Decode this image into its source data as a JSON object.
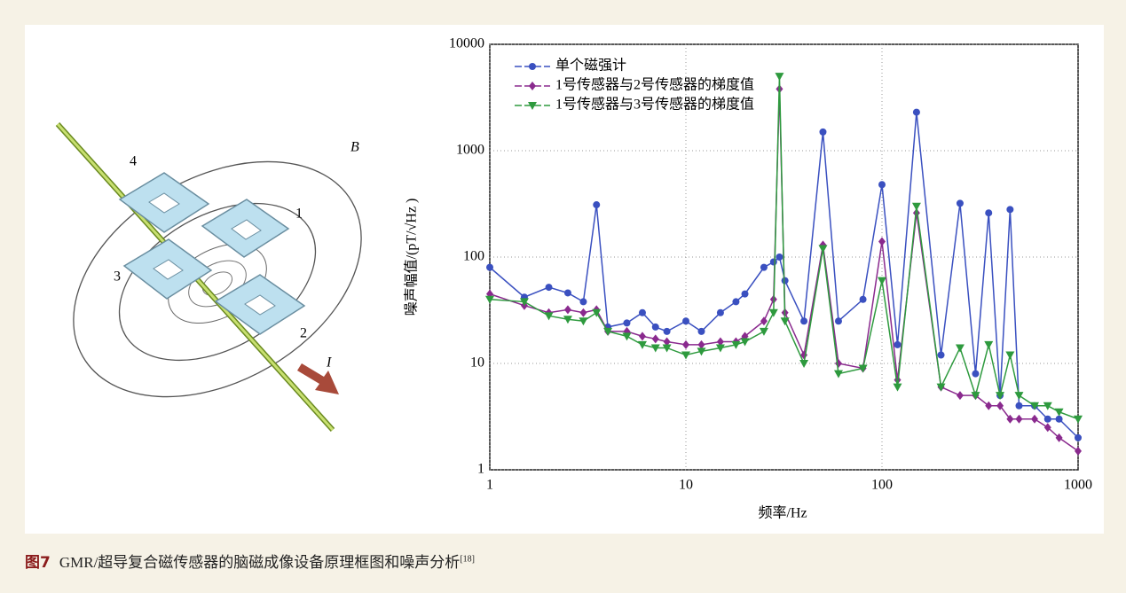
{
  "diagram": {
    "field_label": "B",
    "current_label": "I",
    "sensor_labels": [
      "1",
      "2",
      "3",
      "4"
    ]
  },
  "chart_data": {
    "type": "line",
    "xlabel": "频率/Hz",
    "ylabel": "噪声幅值/(pT/√Hz )",
    "x": [
      1,
      1.5,
      2,
      2.5,
      3,
      3.5,
      4,
      5,
      6,
      7,
      8,
      10,
      12,
      15,
      18,
      20,
      25,
      28,
      30,
      32,
      40,
      50,
      60,
      80,
      100,
      120,
      150,
      200,
      250,
      300,
      350,
      400,
      450,
      500,
      600,
      700,
      800,
      1000
    ],
    "series": [
      {
        "name": "单个磁强计",
        "color": "#3a50c0",
        "marker": "circle",
        "values": [
          80,
          42,
          52,
          46,
          38,
          310,
          22,
          24,
          30,
          22,
          20,
          25,
          20,
          30,
          38,
          45,
          80,
          90,
          100,
          60,
          25,
          1500,
          25,
          40,
          480,
          15,
          2300,
          12,
          320,
          8,
          260,
          5,
          280,
          4,
          4,
          3,
          3,
          2
        ]
      },
      {
        "name": "1号传感器与2号传感器的梯度值",
        "color": "#8a2a8e",
        "marker": "diamond",
        "values": [
          45,
          35,
          30,
          32,
          30,
          32,
          20,
          20,
          18,
          17,
          16,
          15,
          15,
          16,
          16,
          18,
          25,
          40,
          3800,
          30,
          12,
          130,
          10,
          9,
          140,
          7,
          260,
          6,
          5,
          5,
          4,
          4,
          3,
          3,
          3,
          2.5,
          2,
          1.5
        ]
      },
      {
        "name": "1号传感器与3号传感器的梯度值",
        "color": "#2e9a3e",
        "marker": "triangle",
        "values": [
          40,
          38,
          28,
          26,
          25,
          30,
          20,
          18,
          15,
          14,
          14,
          12,
          13,
          14,
          15,
          16,
          20,
          30,
          5000,
          25,
          10,
          120,
          8,
          9,
          60,
          6,
          300,
          6,
          14,
          5,
          15,
          5,
          12,
          5,
          4,
          4,
          3.5,
          3
        ]
      }
    ],
    "xlim": [
      1,
      1000
    ],
    "ylim": [
      1,
      10000
    ],
    "xticks": [
      1,
      10,
      100,
      1000
    ],
    "yticks": [
      1,
      10,
      100,
      1000,
      10000
    ],
    "xscale": "log",
    "yscale": "log",
    "grid": true,
    "legend": "upper left"
  },
  "caption": {
    "figure_number": "图7",
    "text": "GMR/超导复合磁传感器的脑磁成像设备原理框图和噪声分析",
    "reference": "[18]"
  }
}
